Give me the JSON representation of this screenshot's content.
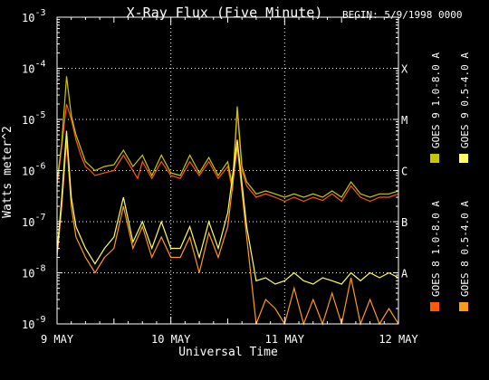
{
  "chart_data": {
    "type": "line",
    "title": "X-Ray Flux (Five Minute)",
    "begin_label": "BEGIN: 5/9/1998 0000",
    "xlabel": "Universal Time",
    "ylabel": "Watts meter^2",
    "x_tick_labels": [
      "9 MAY",
      "10 MAY",
      "11 MAY",
      "12 MAY"
    ],
    "xlim": [
      "1998-05-09T00:00",
      "1998-05-12T00:00"
    ],
    "yscale": "log",
    "ylim": [
      1e-09,
      0.001
    ],
    "y_tick_exponents": [
      -3,
      -4,
      -5,
      -6,
      -7,
      -8,
      -9
    ],
    "y_tick_base": "10",
    "flare_classes": [
      {
        "label": "X",
        "level": 0.0001
      },
      {
        "label": "M",
        "level": 1e-05
      },
      {
        "label": "C",
        "level": 1e-06
      },
      {
        "label": "B",
        "level": 1e-07
      },
      {
        "label": "A",
        "level": 1e-08
      }
    ],
    "grid": true,
    "legend_position": "right",
    "series": [
      {
        "name": "GOES 8 1.0-8.0 A",
        "color": "#ff5a00",
        "x": [
          "1998-05-09T00:00",
          "1998-05-09T01:00",
          "1998-05-09T02:00",
          "1998-05-09T03:00",
          "1998-05-09T04:00",
          "1998-05-09T05:00",
          "1998-05-09T06:00",
          "1998-05-09T07:00",
          "1998-05-09T08:00",
          "1998-05-09T10:00",
          "1998-05-09T12:00",
          "1998-05-09T14:00",
          "1998-05-09T16:00",
          "1998-05-09T17:00",
          "1998-05-09T18:00",
          "1998-05-09T20:00",
          "1998-05-09T22:00",
          "1998-05-10T00:00",
          "1998-05-10T02:00",
          "1998-05-10T04:00",
          "1998-05-10T06:00",
          "1998-05-10T08:00",
          "1998-05-10T10:00",
          "1998-05-10T12:00",
          "1998-05-10T13:00",
          "1998-05-10T14:00",
          "1998-05-10T15:00",
          "1998-05-10T16:00",
          "1998-05-10T18:00",
          "1998-05-10T20:00",
          "1998-05-10T22:00",
          "1998-05-11T00:00",
          "1998-05-11T02:00",
          "1998-05-11T04:00",
          "1998-05-11T06:00",
          "1998-05-11T08:00",
          "1998-05-11T10:00",
          "1998-05-11T12:00",
          "1998-05-11T14:00",
          "1998-05-11T16:00",
          "1998-05-11T18:00",
          "1998-05-11T20:00",
          "1998-05-11T22:00",
          "1998-05-12T00:00"
        ],
        "y": [
          5e-07,
          3e-06,
          2e-05,
          1e-05,
          4e-06,
          2e-06,
          1.2e-06,
          1e-06,
          8e-07,
          9e-07,
          1e-06,
          2e-06,
          1e-06,
          7e-07,
          1.5e-06,
          7e-07,
          1.5e-06,
          8e-07,
          7e-07,
          1.5e-06,
          8e-07,
          1.5e-06,
          7e-07,
          1.2e-06,
          4e-07,
          1.5e-05,
          1e-06,
          5e-07,
          3e-07,
          3.5e-07,
          3e-07,
          2.5e-07,
          3e-07,
          2.5e-07,
          3e-07,
          2.6e-07,
          3.5e-07,
          2.5e-07,
          5e-07,
          3e-07,
          2.5e-07,
          3e-07,
          3e-07,
          3.5e-07
        ]
      },
      {
        "name": "GOES 8 0.5-4.0 A",
        "color": "#ff9a1a",
        "x": [
          "1998-05-09T00:00",
          "1998-05-09T01:00",
          "1998-05-09T02:00",
          "1998-05-09T03:00",
          "1998-05-09T04:00",
          "1998-05-09T06:00",
          "1998-05-09T08:00",
          "1998-05-09T10:00",
          "1998-05-09T12:00",
          "1998-05-09T14:00",
          "1998-05-09T16:00",
          "1998-05-09T18:00",
          "1998-05-09T20:00",
          "1998-05-09T22:00",
          "1998-05-10T00:00",
          "1998-05-10T02:00",
          "1998-05-10T04:00",
          "1998-05-10T06:00",
          "1998-05-10T08:00",
          "1998-05-10T10:00",
          "1998-05-10T12:00",
          "1998-05-10T14:00",
          "1998-05-10T16:00",
          "1998-05-10T18:00",
          "1998-05-10T20:00",
          "1998-05-10T22:00",
          "1998-05-11T00:00",
          "1998-05-11T02:00",
          "1998-05-11T04:00",
          "1998-05-11T06:00",
          "1998-05-11T08:00",
          "1998-05-11T10:00",
          "1998-05-11T12:00",
          "1998-05-11T14:00",
          "1998-05-11T16:00",
          "1998-05-11T18:00",
          "1998-05-11T20:00",
          "1998-05-11T22:00",
          "1998-05-12T00:00"
        ],
        "y": [
          2e-08,
          2e-07,
          4e-06,
          2e-07,
          5e-08,
          2e-08,
          1e-08,
          2e-08,
          3e-08,
          2e-07,
          3e-08,
          8e-08,
          2e-08,
          5e-08,
          2e-08,
          2e-08,
          5e-08,
          1e-08,
          6e-08,
          2e-08,
          8e-08,
          3e-06,
          5e-08,
          1e-09,
          3e-09,
          2e-09,
          1e-09,
          5e-09,
          1e-09,
          3e-09,
          1e-09,
          4e-09,
          1e-09,
          8e-09,
          1e-09,
          3e-09,
          1e-09,
          2e-09,
          1e-09
        ]
      },
      {
        "name": "GOES 9 1.0-8.0 A",
        "color": "#c8c800",
        "x": [
          "1998-05-09T00:00",
          "1998-05-09T01:00",
          "1998-05-09T02:00",
          "1998-05-09T03:00",
          "1998-05-09T04:00",
          "1998-05-09T06:00",
          "1998-05-09T08:00",
          "1998-05-09T10:00",
          "1998-05-09T12:00",
          "1998-05-09T14:00",
          "1998-05-09T16:00",
          "1998-05-09T18:00",
          "1998-05-09T20:00",
          "1998-05-09T22:00",
          "1998-05-10T00:00",
          "1998-05-10T02:00",
          "1998-05-10T04:00",
          "1998-05-10T06:00",
          "1998-05-10T08:00",
          "1998-05-10T10:00",
          "1998-05-10T12:00",
          "1998-05-10T13:00",
          "1998-05-10T14:00",
          "1998-05-10T15:00",
          "1998-05-10T16:00",
          "1998-05-10T18:00",
          "1998-05-10T20:00",
          "1998-05-10T22:00",
          "1998-05-11T00:00",
          "1998-05-11T02:00",
          "1998-05-11T04:00",
          "1998-05-11T06:00",
          "1998-05-11T08:00",
          "1998-05-11T10:00",
          "1998-05-11T12:00",
          "1998-05-11T14:00",
          "1998-05-11T16:00",
          "1998-05-11T18:00",
          "1998-05-11T20:00",
          "1998-05-11T22:00",
          "1998-05-12T00:00"
        ],
        "y": [
          6e-07,
          3.5e-06,
          7e-05,
          1.2e-05,
          5e-06,
          1.5e-06,
          1e-06,
          1.2e-06,
          1.3e-06,
          2.5e-06,
          1.2e-06,
          2e-06,
          8e-07,
          2e-06,
          9e-07,
          8e-07,
          2e-06,
          9e-07,
          1.8e-06,
          8e-07,
          1.5e-06,
          5e-07,
          1.8e-05,
          1.2e-06,
          6e-07,
          3.5e-07,
          4e-07,
          3.5e-07,
          3e-07,
          3.5e-07,
          3e-07,
          3.5e-07,
          3e-07,
          4e-07,
          3e-07,
          6e-07,
          3.5e-07,
          3e-07,
          3.5e-07,
          3.5e-07,
          4e-07
        ]
      },
      {
        "name": "GOES 9 0.5-4.0 A",
        "color": "#ffff60",
        "x": [
          "1998-05-09T00:00",
          "1998-05-09T01:00",
          "1998-05-09T02:00",
          "1998-05-09T03:00",
          "1998-05-09T04:00",
          "1998-05-09T06:00",
          "1998-05-09T08:00",
          "1998-05-09T10:00",
          "1998-05-09T12:00",
          "1998-05-09T14:00",
          "1998-05-09T16:00",
          "1998-05-09T18:00",
          "1998-05-09T20:00",
          "1998-05-09T22:00",
          "1998-05-10T00:00",
          "1998-05-10T02:00",
          "1998-05-10T04:00",
          "1998-05-10T06:00",
          "1998-05-10T08:00",
          "1998-05-10T10:00",
          "1998-05-10T12:00",
          "1998-05-10T14:00",
          "1998-05-10T16:00",
          "1998-05-10T18:00",
          "1998-05-10T20:00",
          "1998-05-10T22:00",
          "1998-05-11T00:00",
          "1998-05-11T02:00",
          "1998-05-11T04:00",
          "1998-05-11T06:00",
          "1998-05-11T08:00",
          "1998-05-11T10:00",
          "1998-05-11T12:00",
          "1998-05-11T14:00",
          "1998-05-11T16:00",
          "1998-05-11T18:00",
          "1998-05-11T20:00",
          "1998-05-11T22:00",
          "1998-05-12T00:00"
        ],
        "y": [
          2.5e-08,
          3e-07,
          6e-06,
          3e-07,
          8e-08,
          3e-08,
          1.5e-08,
          3e-08,
          5e-08,
          3e-07,
          4e-08,
          1e-07,
          3e-08,
          1e-07,
          3e-08,
          3e-08,
          8e-08,
          2e-08,
          1e-07,
          3e-08,
          1.5e-07,
          4e-06,
          8e-08,
          7e-09,
          8e-09,
          6e-09,
          7e-09,
          1e-08,
          7e-09,
          6e-09,
          8e-09,
          7e-09,
          6e-09,
          1e-08,
          7e-09,
          1e-08,
          8e-09,
          1e-08,
          8e-09
        ]
      }
    ]
  }
}
